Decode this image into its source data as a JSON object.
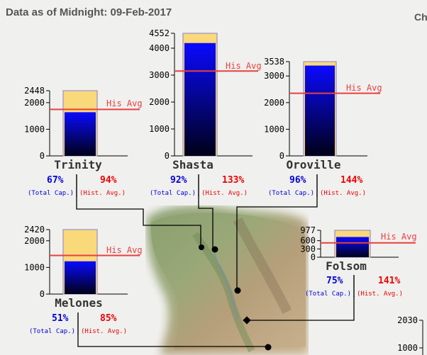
{
  "header": {
    "title": "Data as of Midnight: 09-Feb-2017",
    "partial_right_label": "Ch"
  },
  "colors": {
    "capacity_fill": "#f9d97a",
    "storage_gradient_top": "#0a0aff",
    "storage_gradient_bottom": "#000018",
    "hist_avg_line": "#e84040",
    "pct_capacity_text": "#0000dd",
    "pct_hist_text": "#ee0000",
    "connector": "#000000"
  },
  "chart_data": [
    {
      "type": "bar",
      "reservoir": "Trinity",
      "yticks": [
        "2448",
        "2000",
        "1000",
        "0"
      ],
      "capacity": 2448,
      "storage": 1640,
      "hist_avg": 1745,
      "hist_avg_label": "His Avg",
      "pct_capacity": "67%",
      "pct_capacity_caption": "(Total Cap.)",
      "pct_hist": "94%",
      "pct_hist_caption": "(Hist. Avg.)"
    },
    {
      "type": "bar",
      "reservoir": "Shasta",
      "yticks": [
        "4552",
        "4000",
        "3000",
        "2000",
        "1000",
        "0"
      ],
      "capacity": 4552,
      "storage": 4190,
      "hist_avg": 3150,
      "hist_avg_label": "His Avg",
      "pct_capacity": "92%",
      "pct_capacity_caption": "(Total Cap.)",
      "pct_hist": "133%",
      "pct_hist_caption": "(Hist. Avg.)"
    },
    {
      "type": "bar",
      "reservoir": "Oroville",
      "yticks": [
        "3538",
        "3000",
        "2000",
        "1000",
        "0"
      ],
      "capacity": 3538,
      "storage": 3390,
      "hist_avg": 2350,
      "hist_avg_label": "His Avg",
      "pct_capacity": "96%",
      "pct_capacity_caption": "(Total Cap.)",
      "pct_hist": "144%",
      "pct_hist_caption": "(Hist. Avg.)"
    },
    {
      "type": "bar",
      "reservoir": "Melones",
      "yticks": [
        "2420",
        "2000",
        "1000",
        "0"
      ],
      "capacity": 2420,
      "storage": 1230,
      "hist_avg": 1450,
      "hist_avg_label": "His Avg",
      "pct_capacity": "51%",
      "pct_capacity_caption": "(Total Cap.)",
      "pct_hist": "85%",
      "pct_hist_caption": "(Hist. Avg.)"
    },
    {
      "type": "bar",
      "reservoir": "Folsom",
      "yticks": [
        "977",
        "600",
        "300",
        "0"
      ],
      "capacity": 977,
      "storage": 735,
      "hist_avg": 522,
      "hist_avg_label": "His Avg",
      "pct_capacity": "75%",
      "pct_capacity_caption": "(Total Cap.)",
      "pct_hist": "141%",
      "pct_hist_caption": "(Hist. Avg.)"
    },
    {
      "type": "bar",
      "reservoir": "",
      "partial": true,
      "yticks": [
        "2030",
        "1000"
      ]
    }
  ]
}
